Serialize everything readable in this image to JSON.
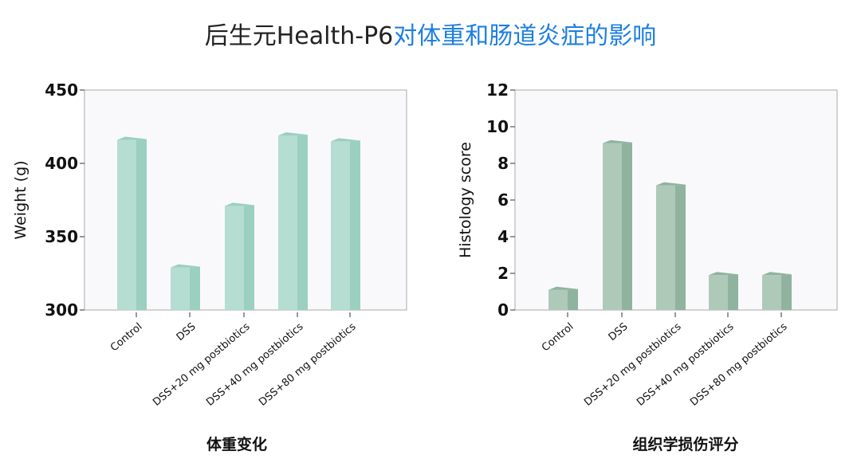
{
  "title": {
    "part1": "后生元Health-P6",
    "part2": "对体重和肠道炎症的影响",
    "accent_color": "#1e7fe0"
  },
  "chart_data": [
    {
      "type": "bar",
      "title": "体重变化",
      "xlabel": "",
      "ylabel": "Weight (g)",
      "categories": [
        "Control",
        "DSS",
        "DSS+20 mg postbiotics",
        "DSS+40 mg postbiotics",
        "DSS+80 mg postbiotics"
      ],
      "values": [
        416,
        329,
        371,
        419,
        415
      ],
      "ylim": [
        300,
        450
      ],
      "yticks": [
        300,
        350,
        400,
        450
      ],
      "grid": false,
      "bar_color": "#b5ddd1",
      "bar_side_color": "#9bcfbf"
    },
    {
      "type": "bar",
      "title": "组织学损伤评分",
      "xlabel": "",
      "ylabel": "Histology score",
      "categories": [
        "Control",
        "DSS",
        "DSS+20 mg postbiotics",
        "DSS+40 mg postbiotics",
        "DSS+80 mg postbiotics"
      ],
      "values": [
        1.1,
        9.1,
        6.8,
        1.9,
        1.9
      ],
      "ylim": [
        0,
        12
      ],
      "yticks": [
        0,
        2,
        4,
        6,
        8,
        10,
        12
      ],
      "grid": false,
      "bar_color": "#afc9b9",
      "bar_side_color": "#8fb39f"
    }
  ]
}
